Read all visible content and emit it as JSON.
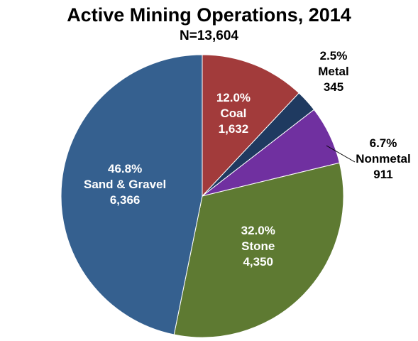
{
  "chart_data": {
    "type": "pie",
    "title": "Active Mining Operations, 2014",
    "subtitle": "N=13,604",
    "slices": [
      {
        "name": "Coal",
        "value": 1632,
        "percent": "12.0%",
        "value_label": "1,632",
        "color": "#A23B3B"
      },
      {
        "name": "Metal",
        "value": 345,
        "percent": "2.5%",
        "value_label": "345",
        "color": "#1F3A60"
      },
      {
        "name": "Nonmetal",
        "value": 911,
        "percent": "6.7%",
        "value_label": "911",
        "color": "#7030A0"
      },
      {
        "name": "Stone",
        "value": 4350,
        "percent": "32.0%",
        "value_label": "4,350",
        "color": "#5E7A32"
      },
      {
        "name": "Sand & Gravel",
        "value": 6366,
        "percent": "46.8%",
        "value_label": "6,366",
        "color": "#35608F"
      }
    ]
  }
}
